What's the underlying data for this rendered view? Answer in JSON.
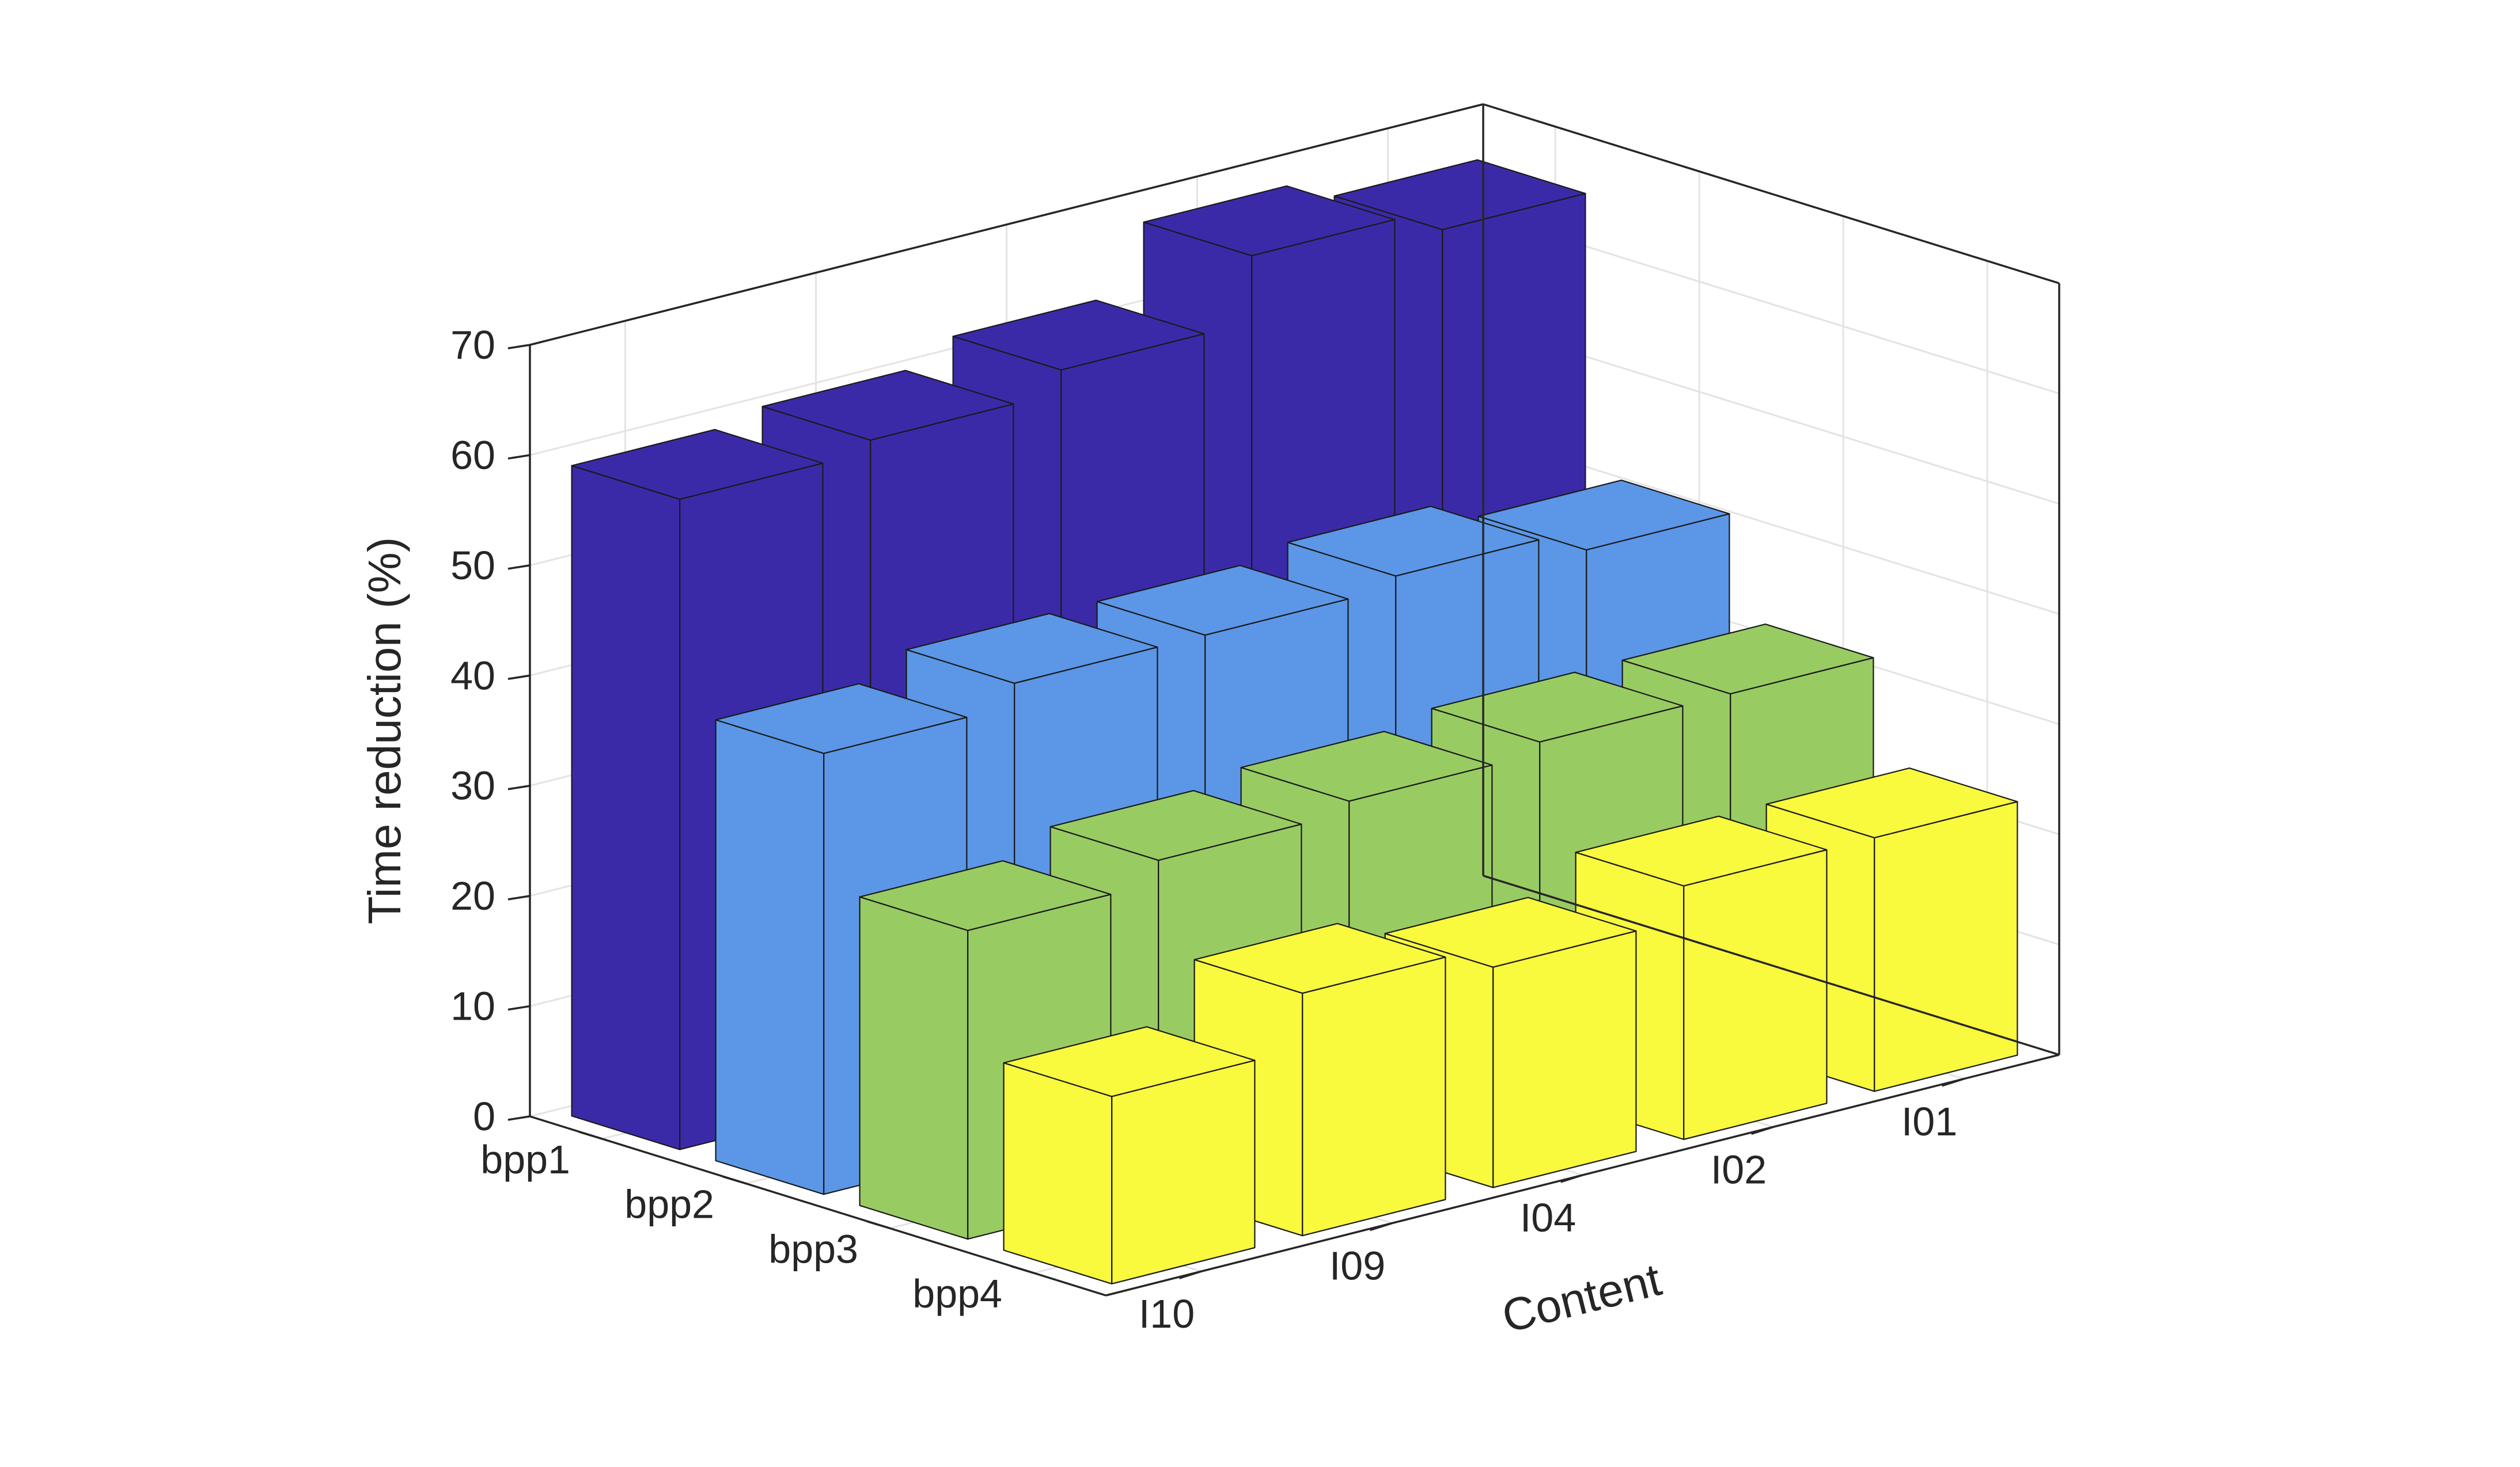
{
  "chart_data": {
    "type": "bar3d",
    "xlabel": "Content",
    "ylabel": "",
    "zlabel": "Time reduction (%)",
    "contents": [
      "I10",
      "I09",
      "I04",
      "I02",
      "I01"
    ],
    "bitrates": [
      "bpp1",
      "bpp2",
      "bpp3",
      "bpp4"
    ],
    "zlim": [
      0,
      70
    ],
    "zticks": [
      0,
      10,
      20,
      30,
      40,
      50,
      60,
      70
    ],
    "grid": true,
    "series": [
      {
        "name": "bpp1",
        "color": "#3b2aa8",
        "values": [
          59,
          60,
          62,
          68,
          66
        ]
      },
      {
        "name": "bpp2",
        "color": "#5b97e6",
        "values": [
          40,
          42,
          42,
          43,
          41
        ]
      },
      {
        "name": "bpp3",
        "color": "#99cb63",
        "values": [
          28,
          30,
          31,
          32,
          32
        ]
      },
      {
        "name": "bpp4",
        "color": "#f9f93e",
        "values": [
          17,
          22,
          20,
          23,
          23
        ]
      }
    ]
  }
}
